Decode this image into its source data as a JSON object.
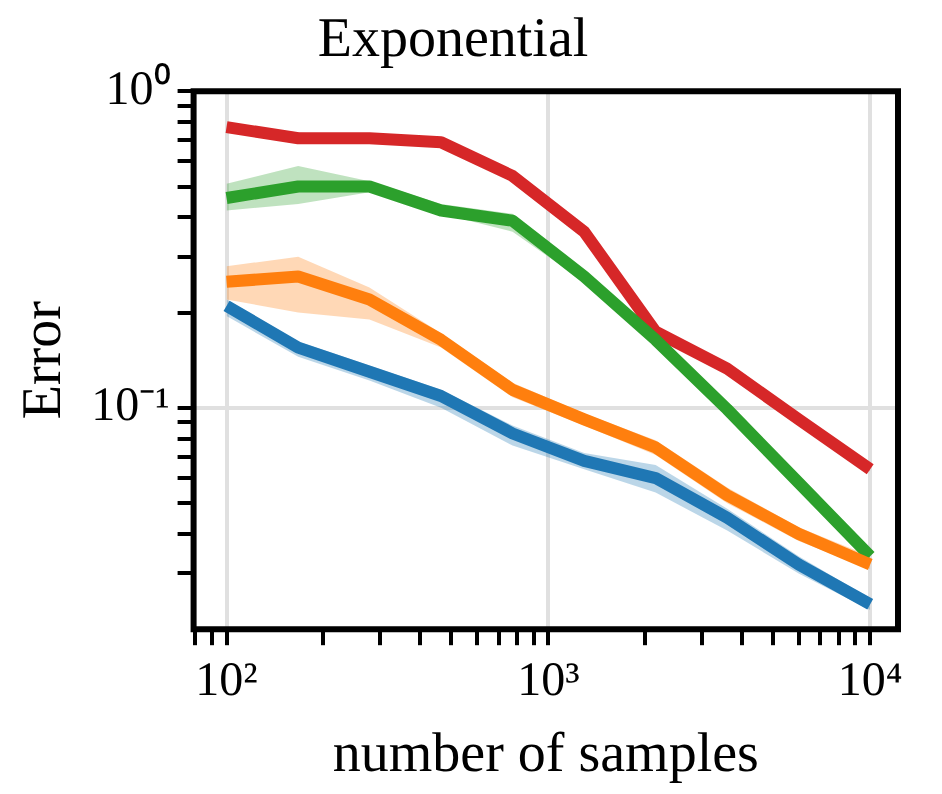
{
  "chart_data": {
    "type": "line",
    "title": "Exponential",
    "xlabel": "number of samples",
    "ylabel": "Error",
    "log": "xy",
    "grid": true,
    "legend": false,
    "marker": "none",
    "line_style": "solid",
    "xlim": [
      79,
      12200
    ],
    "ylim": [
      0.02,
      1
    ],
    "xticks": [
      {
        "value": 100,
        "label": "10²"
      },
      {
        "value": 1000,
        "label": "10³"
      },
      {
        "value": 10000,
        "label": "10⁴"
      },
      {
        "value": 80,
        "label": null
      },
      {
        "value": 90,
        "label": null
      },
      {
        "value": 200,
        "label": null
      },
      {
        "value": 300,
        "label": null
      },
      {
        "value": 400,
        "label": null
      },
      {
        "value": 500,
        "label": null
      },
      {
        "value": 600,
        "label": null
      },
      {
        "value": 700,
        "label": null
      },
      {
        "value": 800,
        "label": null
      },
      {
        "value": 900,
        "label": null
      },
      {
        "value": 2000,
        "label": null
      },
      {
        "value": 3000,
        "label": null
      },
      {
        "value": 4000,
        "label": null
      },
      {
        "value": 5000,
        "label": null
      },
      {
        "value": 6000,
        "label": null
      },
      {
        "value": 7000,
        "label": null
      },
      {
        "value": 8000,
        "label": null
      },
      {
        "value": 9000,
        "label": null
      }
    ],
    "yticks": [
      {
        "value": 1,
        "label": "10⁰"
      },
      {
        "value": 0.1,
        "label": "10⁻¹"
      },
      {
        "value": 0.03,
        "label": null
      },
      {
        "value": 0.04,
        "label": null
      },
      {
        "value": 0.05,
        "label": null
      },
      {
        "value": 0.06,
        "label": null
      },
      {
        "value": 0.07,
        "label": null
      },
      {
        "value": 0.08,
        "label": null
      },
      {
        "value": 0.09,
        "label": null
      },
      {
        "value": 0.2,
        "label": null
      },
      {
        "value": 0.3,
        "label": null
      },
      {
        "value": 0.4,
        "label": null
      },
      {
        "value": 0.5,
        "label": null
      },
      {
        "value": 0.6,
        "label": null
      },
      {
        "value": 0.7,
        "label": null
      },
      {
        "value": 0.8,
        "label": null
      },
      {
        "value": 0.9,
        "label": null
      }
    ],
    "x": [
      100,
      167,
      278,
      464,
      774,
      1292,
      2154,
      3594,
      5995,
      10000
    ],
    "series": [
      {
        "color": "#1f77b4",
        "values": [
          0.21,
          0.155,
          0.13,
          0.109,
          0.083,
          0.068,
          0.06,
          0.045,
          0.032,
          0.024
        ],
        "lower": [
          0.195,
          0.145,
          0.122,
          0.1,
          0.076,
          0.064,
          0.054,
          0.041,
          0.03,
          0.023
        ],
        "upper": [
          0.22,
          0.162,
          0.136,
          0.114,
          0.088,
          0.072,
          0.066,
          0.048,
          0.034,
          0.025
        ]
      },
      {
        "color": "#ff7f0e",
        "values": [
          0.25,
          0.26,
          0.22,
          0.164,
          0.114,
          0.092,
          0.075,
          0.053,
          0.04,
          0.032
        ],
        "lower": [
          0.22,
          0.2,
          0.19,
          0.155,
          0.108,
          0.088,
          0.071,
          0.05,
          0.038,
          0.031
        ],
        "upper": [
          0.28,
          0.3,
          0.24,
          0.172,
          0.12,
          0.096,
          0.079,
          0.056,
          0.042,
          0.034
        ]
      },
      {
        "color": "#2ca02c",
        "values": [
          0.46,
          0.5,
          0.5,
          0.42,
          0.39,
          0.26,
          0.164,
          0.099,
          0.058,
          0.034
        ],
        "lower": [
          0.42,
          0.44,
          0.48,
          0.41,
          0.36,
          0.25,
          0.16,
          0.097,
          0.057,
          0.033
        ],
        "upper": [
          0.51,
          0.58,
          0.52,
          0.44,
          0.41,
          0.27,
          0.168,
          0.101,
          0.059,
          0.035
        ]
      },
      {
        "color": "#d62728",
        "values": [
          0.77,
          0.71,
          0.71,
          0.69,
          0.54,
          0.36,
          0.174,
          0.133,
          0.092,
          0.064
        ],
        "lower": [
          0.75,
          0.69,
          0.7,
          0.68,
          0.53,
          0.355,
          0.17,
          0.131,
          0.091,
          0.063
        ],
        "upper": [
          0.79,
          0.74,
          0.72,
          0.7,
          0.55,
          0.365,
          0.178,
          0.135,
          0.093,
          0.065
        ]
      }
    ]
  }
}
